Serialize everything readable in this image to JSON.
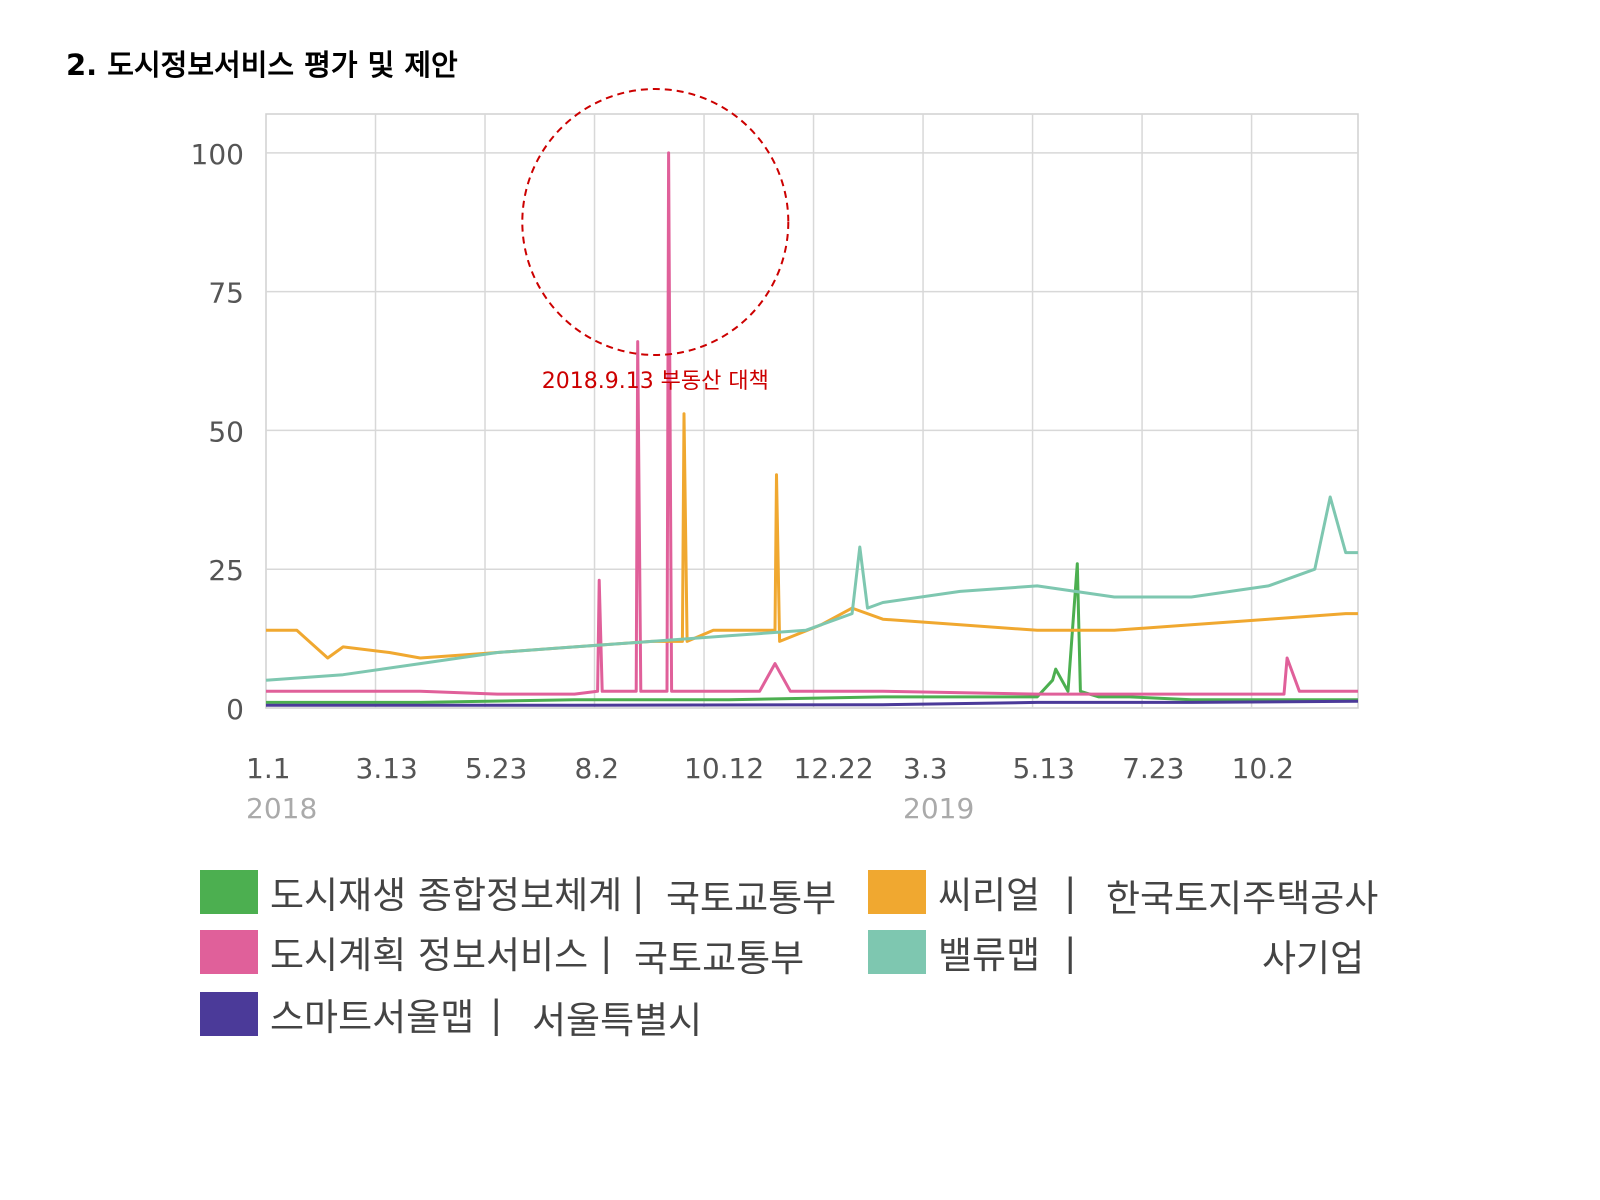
{
  "page": {
    "section_title": "2. 도시정보서비스 평가 및 제안"
  },
  "chart_data": {
    "type": "line",
    "title": "",
    "xlabel": "",
    "ylabel": "",
    "ylim": [
      0,
      107
    ],
    "y_ticks": [
      0,
      25,
      50,
      75,
      100
    ],
    "x_ticks": [
      {
        "day": 0,
        "label": "1.1",
        "year": "2018"
      },
      {
        "day": 71,
        "label": "3.13"
      },
      {
        "day": 142,
        "label": "5.23"
      },
      {
        "day": 213,
        "label": "8.2"
      },
      {
        "day": 284,
        "label": "10.12"
      },
      {
        "day": 355,
        "label": "12.22"
      },
      {
        "day": 426,
        "label": "3.3",
        "year": "2019"
      },
      {
        "day": 497,
        "label": "5.13"
      },
      {
        "day": 568,
        "label": "7.23"
      },
      {
        "day": 639,
        "label": "10.2"
      }
    ],
    "x_range_days": [
      0,
      708
    ],
    "grid": true,
    "legend_position": "bottom",
    "annotation": {
      "text": "2018.9.13 부동산 대책",
      "day": 255,
      "color": "#cc0000"
    },
    "series": [
      {
        "name": "도시재생 종합정보체계",
        "org": "국토교통부",
        "color": "#4caf50",
        "x": [
          0,
          100,
          200,
          300,
          400,
          500,
          510,
          512,
          520,
          526,
          528,
          540,
          560,
          600,
          708
        ],
        "y": [
          1,
          1,
          1.5,
          1.5,
          2,
          2,
          5,
          7,
          3,
          26,
          3,
          2,
          2,
          1.5,
          1.5
        ]
      },
      {
        "name": "도시계획 정보서비스",
        "org": "국토교통부",
        "color": "#e0609a",
        "x": [
          0,
          50,
          100,
          150,
          200,
          215,
          216,
          218,
          230,
          240,
          241,
          243,
          255,
          260,
          261,
          263,
          280,
          320,
          330,
          340,
          350,
          400,
          500,
          600,
          660,
          662,
          670,
          708
        ],
        "y": [
          3,
          3,
          3,
          2.5,
          2.5,
          3,
          23,
          3,
          3,
          3,
          66,
          3,
          3,
          3,
          100,
          3,
          3,
          3,
          8,
          3,
          3,
          3,
          2.5,
          2.5,
          2.5,
          9,
          3,
          3
        ]
      },
      {
        "name": "씨리얼",
        "org": "한국토지주택공사",
        "color": "#f0a830",
        "x": [
          0,
          20,
          40,
          50,
          80,
          100,
          150,
          200,
          250,
          270,
          271,
          273,
          290,
          330,
          331,
          333,
          360,
          380,
          400,
          450,
          500,
          550,
          600,
          650,
          700,
          708
        ],
        "y": [
          14,
          14,
          9,
          11,
          10,
          9,
          10,
          11,
          12,
          12,
          53,
          12,
          14,
          14,
          42,
          12,
          15,
          18,
          16,
          15,
          14,
          14,
          15,
          16,
          17,
          17
        ]
      },
      {
        "name": "밸류맵",
        "org": "사기업",
        "color": "#7ec7b0",
        "x": [
          0,
          50,
          100,
          150,
          200,
          250,
          300,
          350,
          380,
          385,
          390,
          400,
          450,
          500,
          550,
          600,
          650,
          680,
          690,
          700,
          708
        ],
        "y": [
          5,
          6,
          8,
          10,
          11,
          12,
          13,
          14,
          17,
          29,
          18,
          19,
          21,
          22,
          20,
          20,
          22,
          25,
          38,
          28,
          28
        ]
      },
      {
        "name": "스마트서울맵",
        "org": "서울특별시",
        "color": "#4b3a99",
        "x": [
          0,
          200,
          400,
          500,
          600,
          708
        ],
        "y": [
          0.5,
          0.5,
          0.6,
          1,
          1,
          1.2
        ]
      }
    ]
  }
}
